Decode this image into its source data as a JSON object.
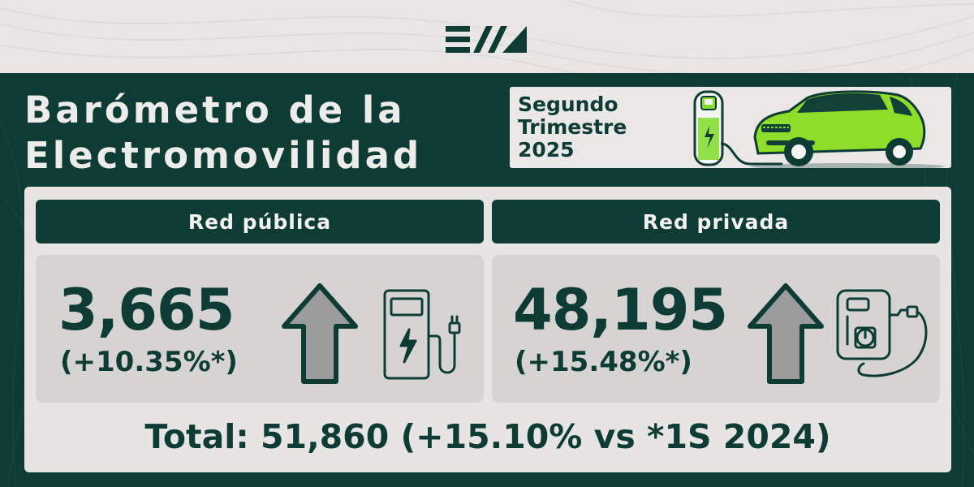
{
  "colors": {
    "primary": "#0e3b33",
    "accent": "#7fdc2a",
    "light": "#e6e5e3",
    "card": "#d5d4d2",
    "arrow": "#9c9c9c"
  },
  "brand": {
    "logo_text": "EVM",
    "logo_icon": "evm-logo-icon"
  },
  "title": {
    "line1": "Barómetro de la",
    "line2": "Electromovilidad"
  },
  "period": {
    "line1": "Segundo",
    "line2": "Trimestre",
    "line3": "2025"
  },
  "sections": [
    {
      "header": "Red pública",
      "value": "3,665",
      "change": "(+10.35%*)",
      "icon": "public-charger-icon",
      "trend_icon": "up-arrow-icon"
    },
    {
      "header": "Red privada",
      "value": "48,195",
      "change": "(+15.48%*)",
      "icon": "wallbox-charger-icon",
      "trend_icon": "up-arrow-icon"
    }
  ],
  "total": {
    "text": "Total: 51,860 (+15.10% vs *1S 2024)"
  }
}
